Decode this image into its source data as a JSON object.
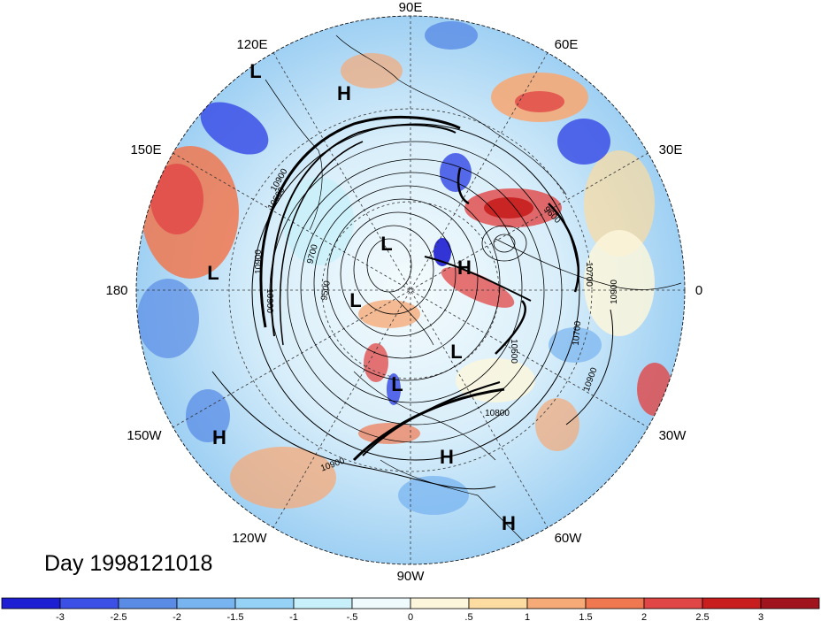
{
  "title": "Day 1998121018",
  "longitude_labels": [
    "90E",
    "60E",
    "30E",
    "0",
    "30W",
    "60W",
    "90W",
    "120W",
    "150W",
    "180",
    "150E",
    "120E"
  ],
  "pressure_systems": [
    "L",
    "H",
    "L",
    "L",
    "L",
    "H",
    "L",
    "L",
    "H",
    "H",
    "H"
  ],
  "contour_labels": [
    "10900",
    "10900",
    "9700",
    "9500",
    "10600",
    "10700",
    "10900",
    "10500",
    "10800",
    "10900",
    "10900",
    "10900",
    "9600",
    "10700"
  ],
  "colorbar": {
    "ticks": [
      "-3",
      "-2.5",
      "-2",
      "-1.5",
      "-1",
      "-.5",
      "0",
      ".5",
      "1",
      "1.5",
      "2",
      "2.5",
      "3"
    ],
    "colors": [
      "#1e1ed2",
      "#3c50e6",
      "#5a8ce6",
      "#78b4f0",
      "#96d2f5",
      "#c8f0fa",
      "#eefafc",
      "#fcf6dc",
      "#fcdca0",
      "#f5aa78",
      "#f07850",
      "#e14646",
      "#c81e1e",
      "#a0141e"
    ]
  }
}
